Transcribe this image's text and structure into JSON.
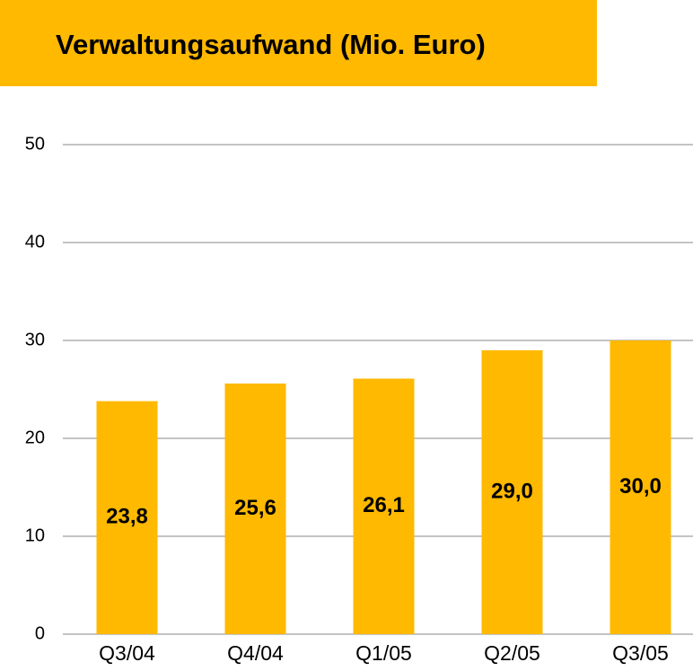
{
  "chart_data": {
    "type": "bar",
    "title": "Verwaltungsaufwand (Mio. Euro)",
    "categories": [
      "Q3/04",
      "Q4/04",
      "Q1/05",
      "Q2/05",
      "Q3/05"
    ],
    "values": [
      23.8,
      25.6,
      26.1,
      29.0,
      30.0
    ],
    "value_labels": [
      "23,8",
      "25,6",
      "26,1",
      "29,0",
      "30,0"
    ],
    "color": "#ffb900",
    "ylim": [
      0,
      50
    ],
    "yticks": [
      0,
      10,
      20,
      30,
      40,
      50
    ],
    "grid": true
  }
}
